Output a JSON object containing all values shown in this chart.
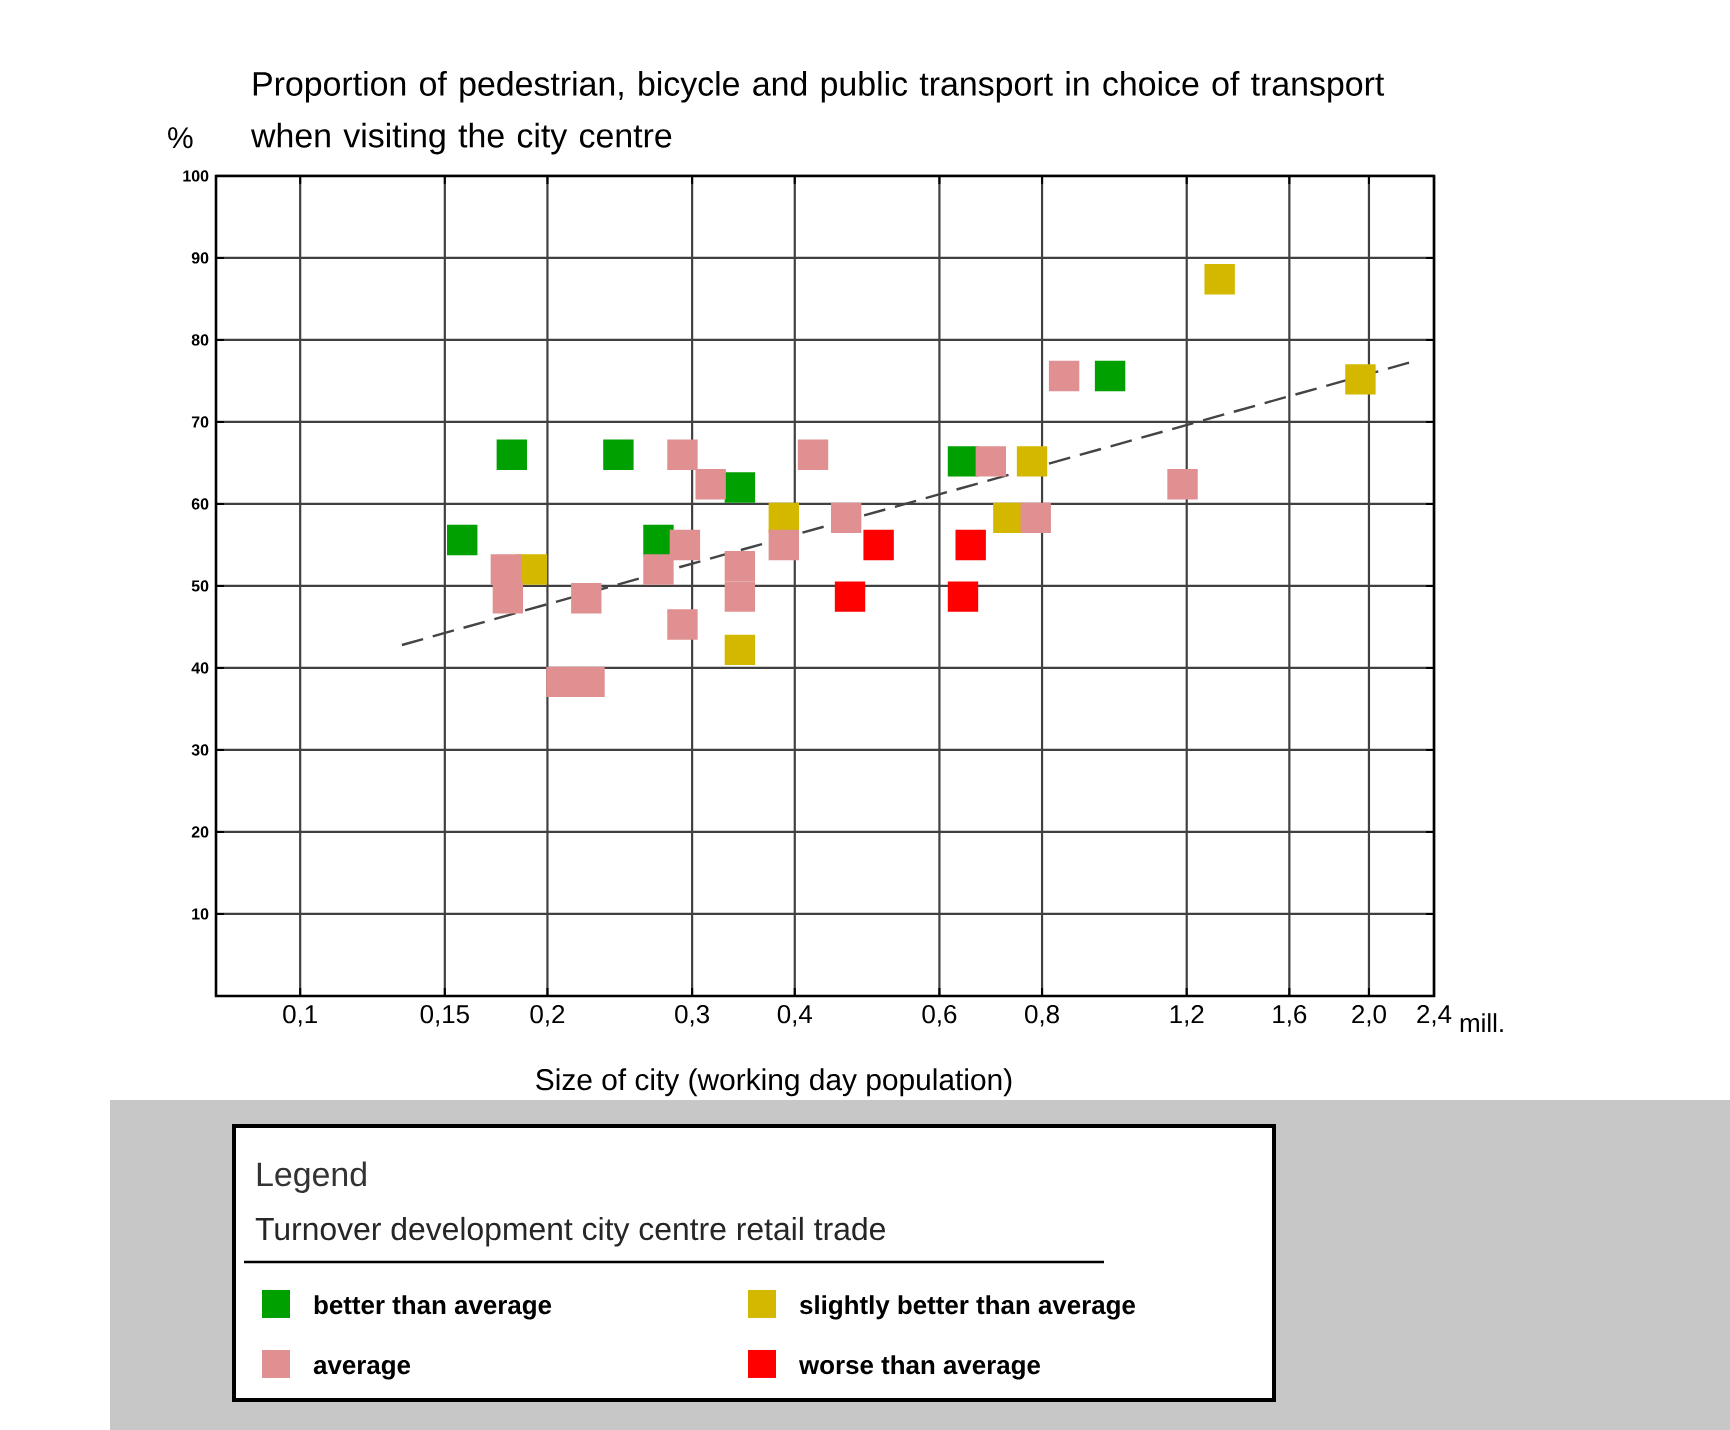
{
  "chart_data": {
    "type": "scatter",
    "title": "Proportion of pedestrian, bicycle and public transport in choice of transport when visiting the city centre",
    "xlabel": "Size of city (working day population)",
    "ylabel": "%",
    "legend_title": "Turnover development city centre retail trade",
    "annotations": [
      "Legend",
      "mill."
    ],
    "log": "x",
    "xlim": [
      0.079,
      2.4
    ],
    "ylim": [
      0,
      100
    ],
    "xticks": [
      {
        "value": 0.1,
        "label": "0,1"
      },
      {
        "value": 0.15,
        "label": "0,15"
      },
      {
        "value": 0.2,
        "label": "0,2"
      },
      {
        "value": 0.3,
        "label": "0,3"
      },
      {
        "value": 0.4,
        "label": "0,4"
      },
      {
        "value": 0.6,
        "label": "0,6"
      },
      {
        "value": 0.8,
        "label": "0,8"
      },
      {
        "value": 1.2,
        "label": "1,2"
      },
      {
        "value": 1.6,
        "label": "1,6"
      },
      {
        "value": 2.0,
        "label": "2,0"
      },
      {
        "value": 2.4,
        "label": "2,4"
      }
    ],
    "yticks": [
      10,
      20,
      30,
      40,
      50,
      60,
      70,
      80,
      90,
      100
    ],
    "grid": true,
    "legend": "bottom",
    "marker": "square",
    "series": [
      {
        "name": "better than average",
        "color": "#00a000",
        "x": [
          0.181,
          0.244,
          0.1575,
          0.273,
          0.343,
          0.641,
          0.968
        ],
        "values": [
          66,
          66,
          55.6,
          55.6,
          62,
          65.2,
          75.6
        ]
      },
      {
        "name": "slightly better than average",
        "color": "#d4b800",
        "x": [
          0.1915,
          0.388,
          0.343,
          0.778,
          0.728,
          1.316,
          1.953
        ],
        "values": [
          52,
          58.3,
          42.2,
          65.2,
          58.3,
          87.4,
          75.2
        ]
      },
      {
        "name": "average",
        "color": "#e09090",
        "x": [
          0.178,
          0.179,
          0.223,
          0.208,
          0.225,
          0.273,
          0.294,
          0.292,
          0.292,
          0.316,
          0.343,
          0.343,
          0.388,
          0.421,
          0.462,
          0.693,
          0.786,
          0.851,
          1.186
        ],
        "values": [
          52,
          48.5,
          48.5,
          38.3,
          38.3,
          52,
          55,
          66,
          45.3,
          62.4,
          52.4,
          48.7,
          55,
          66,
          58.3,
          65.2,
          58.3,
          75.6,
          62.4
        ]
      },
      {
        "name": "worse than average",
        "color": "#ff0000",
        "x": [
          0.467,
          0.506,
          0.655,
          0.641
        ],
        "values": [
          48.7,
          55,
          55,
          48.7
        ]
      },
      {
        "type": "line",
        "color": "#444444",
        "line_style": "dashed",
        "marker": "none",
        "x": [
          0.133,
          2.25
        ],
        "values": [
          42.8,
          77.3
        ]
      }
    ]
  }
}
